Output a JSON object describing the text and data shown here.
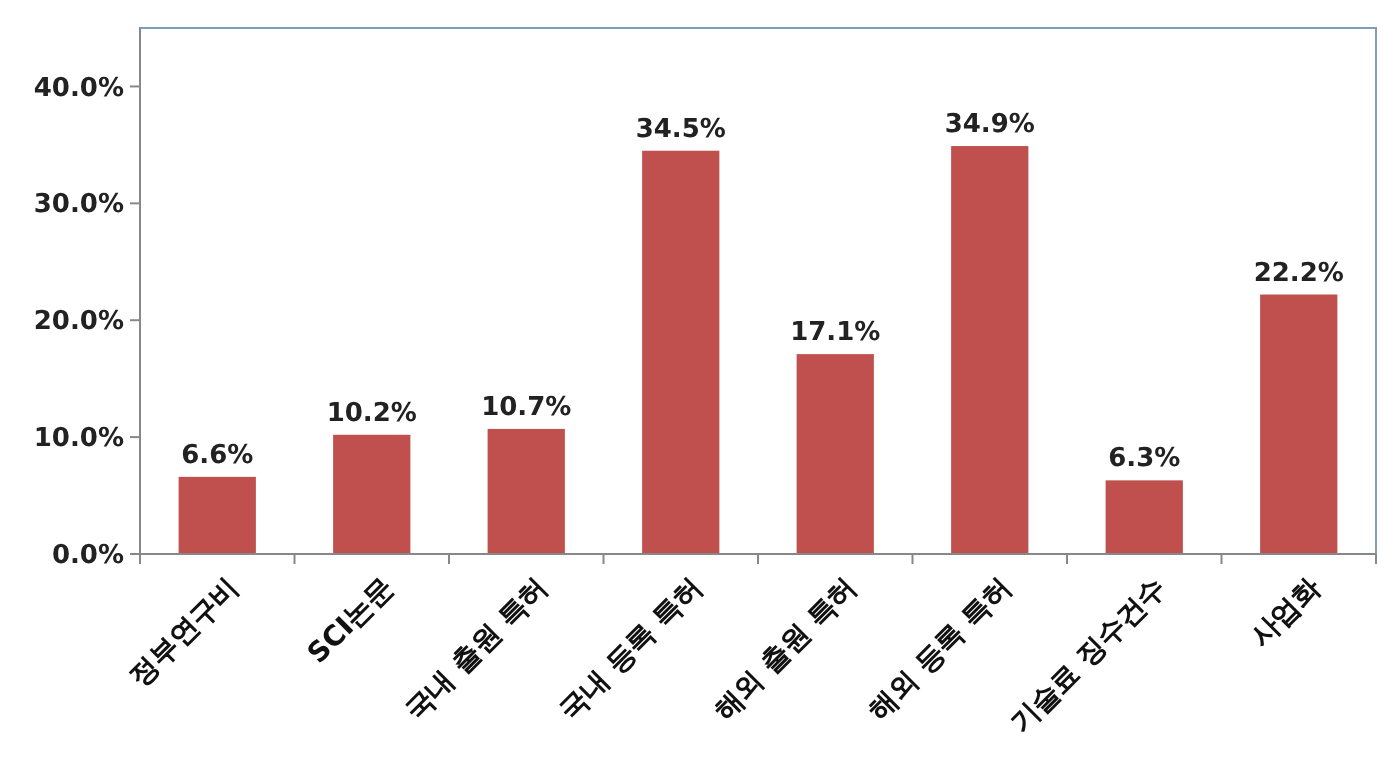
{
  "chart_data": {
    "type": "bar",
    "categories": [
      "정부연구비",
      "SCI논문",
      "국내 출원 특허",
      "국내 등록 특허",
      "해외 출원 특허",
      "해외 등록 특허",
      "기술료 징수건수",
      "사업화"
    ],
    "values": [
      6.6,
      10.2,
      10.7,
      34.5,
      17.1,
      34.9,
      6.3,
      22.2
    ],
    "value_labels": [
      "6.6%",
      "10.2%",
      "10.7%",
      "34.5%",
      "17.1%",
      "34.9%",
      "6.3%",
      "22.2%"
    ],
    "color": "#c0504d",
    "ylim": [
      0,
      45
    ],
    "yticks": [
      {
        "value": 0,
        "label": "0.0%"
      },
      {
        "value": 10,
        "label": "10.0%"
      },
      {
        "value": 20,
        "label": "20.0%"
      },
      {
        "value": 30,
        "label": "30.0%"
      },
      {
        "value": 40,
        "label": "40.0%"
      }
    ],
    "grid": false
  }
}
